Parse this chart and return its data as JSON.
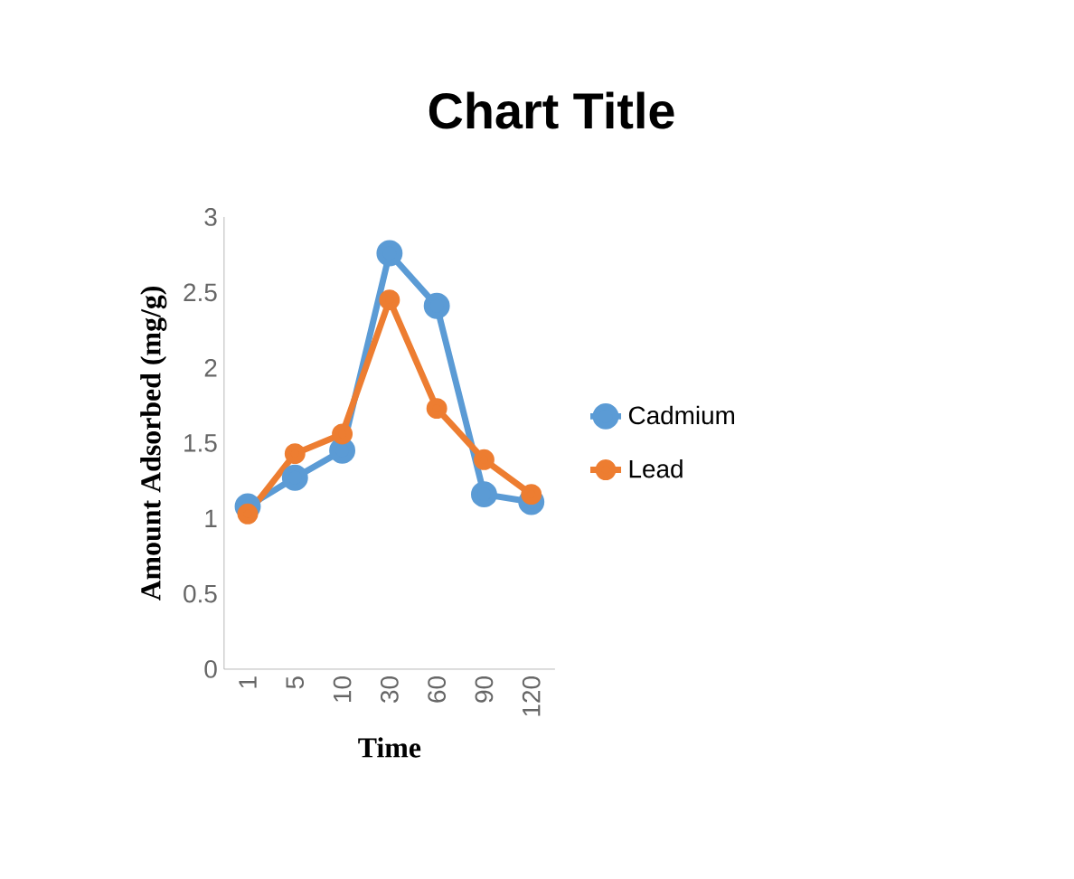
{
  "chart_data": {
    "type": "line",
    "title": "Chart Title",
    "xlabel": "Time",
    "ylabel": "Amount Adsorbed (mg/g)",
    "categories": [
      "1",
      "5",
      "10",
      "30",
      "60",
      "90",
      "120"
    ],
    "series": [
      {
        "name": "Cadmium",
        "color": "#5b9bd5",
        "values": [
          1.08,
          1.27,
          1.45,
          2.76,
          2.41,
          1.16,
          1.11
        ]
      },
      {
        "name": "Lead",
        "color": "#ed7d31",
        "values": [
          1.03,
          1.43,
          1.56,
          2.45,
          1.73,
          1.39,
          1.16
        ]
      }
    ],
    "ylim": [
      0,
      3
    ],
    "yticks": [
      0,
      0.5,
      1,
      1.5,
      2,
      2.5,
      3
    ],
    "grid": false,
    "legend": "right",
    "marker": "circle",
    "line_style": "solid"
  }
}
